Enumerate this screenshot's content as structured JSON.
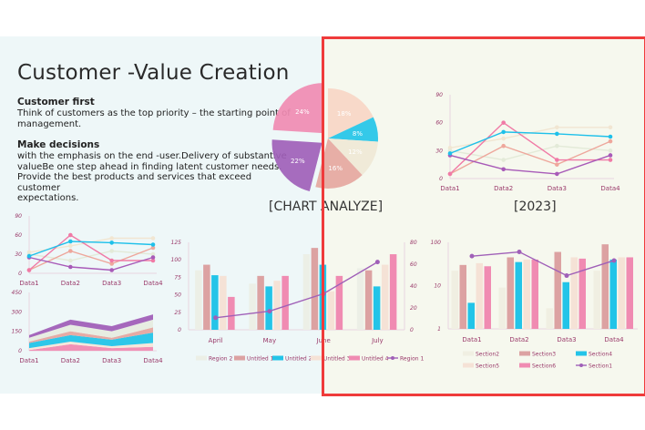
{
  "slide": {
    "title": "Customer -Value Creation",
    "sections": [
      {
        "heading": "Customer first",
        "lines": [
          "Think of customers as the top priority     – the starting point of",
          "management."
        ]
      },
      {
        "heading": "Make decisions",
        "lines": [
          "with the emphasis on the end  -user.Delivery  of substantive",
          "valueBe  one step ahead in finding latent customer needs.",
          "Provide the best products and services that exceed customer",
          "expectations."
        ]
      }
    ],
    "pie_caption": "[CHART ANALYZE]",
    "line_caption": "[2023]"
  },
  "colors": {
    "pink": "#f08bb2",
    "peach": "#f7d6c6",
    "cyan": "#23c4e8",
    "cream": "#efe8d6",
    "salmon": "#e5a7a0",
    "purple": "#a060b8",
    "highlight": "#ef3b3b",
    "axis_text": "#9a3a6a"
  },
  "chart_data": [
    {
      "type": "pie",
      "slices": [
        {
          "label": "18%",
          "value": 18,
          "color": "#f7d6c6"
        },
        {
          "label": "8%",
          "value": 8,
          "color": "#23c4e8"
        },
        {
          "label": "12%",
          "value": 12,
          "color": "#efe8d6"
        },
        {
          "label": "16%",
          "value": 16,
          "color": "#e5a7a0"
        },
        {
          "label": "22%",
          "value": 22,
          "color": "#a060b8",
          "exploded": true
        },
        {
          "label": "24%",
          "value": 24,
          "color": "#f08bb2",
          "exploded": true
        }
      ]
    },
    {
      "type": "line",
      "categories": [
        "Data1",
        "Data2",
        "Data3",
        "Data4"
      ],
      "ylim": [
        0,
        90
      ],
      "yticks": [
        0,
        30,
        60,
        90
      ],
      "series": [
        {
          "values": [
            33,
            43,
            55,
            55
          ],
          "color": "#f1e6d2"
        },
        {
          "values": [
            30,
            20,
            35,
            30
          ],
          "color": "#e3ead8"
        },
        {
          "values": [
            5,
            35,
            15,
            40
          ],
          "color": "#eea79c"
        },
        {
          "values": [
            5,
            60,
            20,
            20
          ],
          "color": "#f07aa6"
        },
        {
          "values": [
            25,
            10,
            5,
            25
          ],
          "color": "#a85ab8"
        },
        {
          "values": [
            27,
            50,
            48,
            45
          ],
          "color": "#1ec0ea"
        }
      ]
    },
    {
      "type": "line",
      "categories": [
        "Data1",
        "Data2",
        "Data3",
        "Data4"
      ],
      "ylim": [
        0,
        90
      ],
      "yticks": [
        0,
        30,
        60,
        90
      ],
      "series": [
        {
          "values": [
            33,
            43,
            55,
            55
          ],
          "color": "#f1e6d2"
        },
        {
          "values": [
            30,
            20,
            35,
            30
          ],
          "color": "#e3ead8"
        },
        {
          "values": [
            5,
            35,
            15,
            40
          ],
          "color": "#eea79c"
        },
        {
          "values": [
            5,
            60,
            20,
            20
          ],
          "color": "#f07aa6"
        },
        {
          "values": [
            25,
            10,
            5,
            25
          ],
          "color": "#a85ab8"
        },
        {
          "values": [
            27,
            50,
            48,
            45
          ],
          "color": "#1ec0ea"
        }
      ]
    },
    {
      "type": "area",
      "stacked": true,
      "categories": [
        "Data1",
        "Data2",
        "Data3",
        "Data4"
      ],
      "ylim": [
        0,
        450
      ],
      "yticks": [
        0,
        150,
        300,
        450
      ],
      "series": [
        {
          "values": [
            5,
            50,
            20,
            30
          ],
          "color": "#f08bb2"
        },
        {
          "values": [
            15,
            20,
            15,
            30
          ],
          "color": "#f5e6d8"
        },
        {
          "values": [
            40,
            50,
            50,
            80
          ],
          "color": "#23c4e8"
        },
        {
          "values": [
            10,
            30,
            15,
            40
          ],
          "color": "#e5a7a0"
        },
        {
          "values": [
            30,
            50,
            50,
            60
          ],
          "color": "#e6ece0"
        },
        {
          "values": [
            20,
            40,
            40,
            40
          ],
          "color": "#a060b8"
        }
      ]
    },
    {
      "type": "bar",
      "categories": [
        "April",
        "May",
        "June",
        "July"
      ],
      "ylim": [
        0,
        125
      ],
      "yticks": [
        0,
        25,
        50,
        75,
        100,
        125
      ],
      "y2lim": [
        0,
        80
      ],
      "y2ticks": [
        0,
        20,
        40,
        60,
        80
      ],
      "series": [
        {
          "name": "Region 2",
          "values": [
            85,
            66,
            108,
            88
          ],
          "color": "#ecefe6"
        },
        {
          "name": "Untitled 1",
          "values": [
            93,
            77,
            117,
            85
          ],
          "color": "#dca2a2"
        },
        {
          "name": "Untitled 2",
          "values": [
            78,
            62,
            93,
            62
          ],
          "color": "#23c4e8"
        },
        {
          "name": "Untitled 3",
          "values": [
            77,
            70,
            55,
            93
          ],
          "color": "#f5e2d6"
        },
        {
          "name": "Untitled 4",
          "values": [
            47,
            77,
            77,
            108
          ],
          "color": "#f08bb2"
        }
      ],
      "line": {
        "name": "Region 1",
        "values": [
          11,
          17,
          33,
          62
        ],
        "color": "#a060b8",
        "axis": "right"
      },
      "legend": "bottom"
    },
    {
      "type": "bar",
      "log_scale": true,
      "categories": [
        "Data1",
        "Data2",
        "Data3",
        "Data4"
      ],
      "ylim": [
        1,
        100
      ],
      "yticks": [
        "1",
        "10",
        "100"
      ],
      "series": [
        {
          "name": "Section2",
          "values": [
            22,
            9,
            3,
            22
          ],
          "color": "#f0efe2"
        },
        {
          "name": "Section3",
          "values": [
            30,
            45,
            60,
            90
          ],
          "color": "#dca2a2"
        },
        {
          "name": "Section4",
          "values": [
            4,
            35,
            12,
            40
          ],
          "color": "#23c4e8"
        },
        {
          "name": "Section5",
          "values": [
            33,
            40,
            45,
            45
          ],
          "color": "#f5e2d6"
        },
        {
          "name": "Section6",
          "values": [
            28,
            40,
            42,
            45
          ],
          "color": "#f08bb2"
        }
      ],
      "line": {
        "name": "Section1",
        "values": [
          48,
          60,
          17,
          38
        ],
        "color": "#a060b8"
      },
      "legend": "bottom"
    }
  ]
}
